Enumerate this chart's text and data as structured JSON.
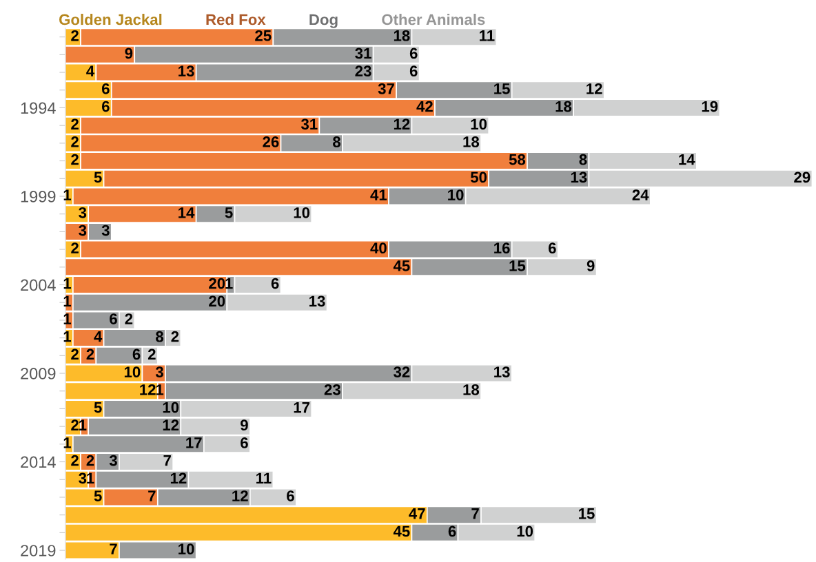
{
  "chart_data": {
    "type": "bar",
    "orientation": "horizontal",
    "stacked": true,
    "legend": "top",
    "grid": false,
    "tick_labels": "y",
    "xlim": [
      0,
      97.5
    ],
    "categories": [
      null,
      null,
      null,
      null,
      "1994",
      null,
      null,
      null,
      null,
      "1999",
      null,
      null,
      null,
      null,
      "2004",
      null,
      null,
      null,
      null,
      "2009",
      null,
      null,
      null,
      null,
      "2014",
      null,
      null,
      null,
      null,
      "2019"
    ],
    "series": [
      {
        "name": "Golden Jackal",
        "color": "#fdbb2a",
        "values": [
          2,
          0,
          4,
          6,
          6,
          2,
          2,
          2,
          5,
          1,
          3,
          0,
          2,
          0,
          1,
          0,
          0,
          1,
          2,
          10,
          12,
          5,
          2,
          1,
          2,
          3,
          5,
          47,
          45,
          7
        ],
        "value_labels": [
          "2",
          null,
          "4",
          "6",
          "6",
          "2",
          "2",
          "2",
          "5",
          "1",
          "3",
          null,
          "2",
          null,
          "1",
          null,
          null,
          "1",
          "2",
          "10",
          "12",
          "5",
          "2",
          "1",
          "2",
          "3",
          "5",
          "47",
          "45",
          "7"
        ]
      },
      {
        "name": "Red Fox",
        "color": "#f07f3c",
        "values": [
          25,
          9,
          13,
          37,
          42,
          31,
          26,
          58,
          50,
          41,
          14,
          3,
          40,
          45,
          20,
          1,
          1,
          4,
          2,
          3,
          1,
          0,
          1,
          0,
          2,
          1,
          7,
          0,
          0,
          0
        ],
        "value_labels": [
          "25",
          "9",
          "13",
          "37",
          "42",
          "31",
          "26",
          "58",
          "50",
          "41",
          "14",
          "3",
          "40",
          "45",
          "20",
          "1",
          "1",
          "4",
          "2",
          "3",
          "1",
          null,
          "1",
          null,
          "2",
          "1",
          "7",
          null,
          null,
          null
        ]
      },
      {
        "name": "Dog",
        "color": "#9a9c9d",
        "values": [
          18,
          31,
          23,
          15,
          18,
          12,
          8,
          8,
          13,
          10,
          5,
          3,
          16,
          15,
          1,
          20,
          6,
          8,
          6,
          32,
          23,
          10,
          12,
          17,
          3,
          12,
          12,
          7,
          6,
          10
        ],
        "value_labels": [
          "18",
          "31",
          "23",
          "15",
          "18",
          "12",
          "8",
          "8",
          "13",
          "10",
          "5",
          "3",
          "16",
          "15",
          "1",
          "20",
          "6",
          "8",
          "6",
          "32",
          "23",
          "10",
          "12",
          "17",
          "3",
          "12",
          "12",
          "7",
          "6",
          "10"
        ]
      },
      {
        "name": "Other Animals",
        "color": "#d0d1d1",
        "values": [
          11,
          6,
          6,
          12,
          19,
          10,
          18,
          14,
          29,
          24,
          10,
          0,
          6,
          9,
          6,
          13,
          2,
          2,
          2,
          13,
          18,
          17,
          9,
          6,
          7,
          11,
          6,
          15,
          10,
          0
        ],
        "value_labels": [
          "11",
          "6",
          "6",
          "12",
          "19",
          "10",
          "18",
          "14",
          "29",
          "24",
          "10",
          null,
          "6",
          "9",
          "6",
          "13",
          "2",
          "2",
          "2",
          "13",
          "18",
          "17",
          "9",
          "6",
          "7",
          "11",
          "6",
          "15",
          "10",
          null
        ]
      }
    ]
  }
}
